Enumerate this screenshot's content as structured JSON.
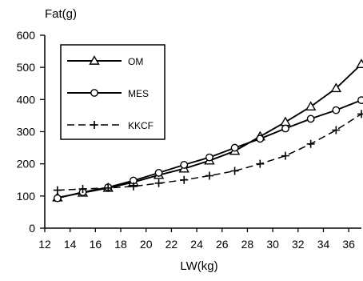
{
  "chart_data": {
    "type": "line",
    "ylabel": "Fat(g)",
    "xlabel": "LW(kg)",
    "xlim": [
      12,
      37
    ],
    "ylim": [
      0,
      600
    ],
    "x_ticks": [
      12,
      14,
      16,
      18,
      20,
      22,
      24,
      26,
      28,
      30,
      32,
      34,
      36
    ],
    "y_ticks": [
      0,
      100,
      200,
      300,
      400,
      500,
      600
    ],
    "x": [
      13,
      15,
      17,
      19,
      21,
      23,
      25,
      27,
      29,
      31,
      33,
      35,
      37
    ],
    "legend_position": "top-left",
    "grid": false,
    "series": [
      {
        "name": "OM",
        "marker": "triangle",
        "dash": "solid",
        "values": [
          95,
          110,
          125,
          143,
          165,
          185,
          210,
          240,
          285,
          330,
          378,
          435,
          510
        ]
      },
      {
        "name": "MES",
        "marker": "circle",
        "dash": "solid",
        "values": [
          93,
          112,
          127,
          148,
          172,
          197,
          220,
          250,
          278,
          310,
          340,
          367,
          398
        ]
      },
      {
        "name": "KKCF",
        "marker": "plus",
        "dash": "dashed",
        "values": [
          118,
          122,
          125,
          130,
          140,
          150,
          163,
          178,
          200,
          225,
          262,
          305,
          355
        ]
      }
    ]
  }
}
